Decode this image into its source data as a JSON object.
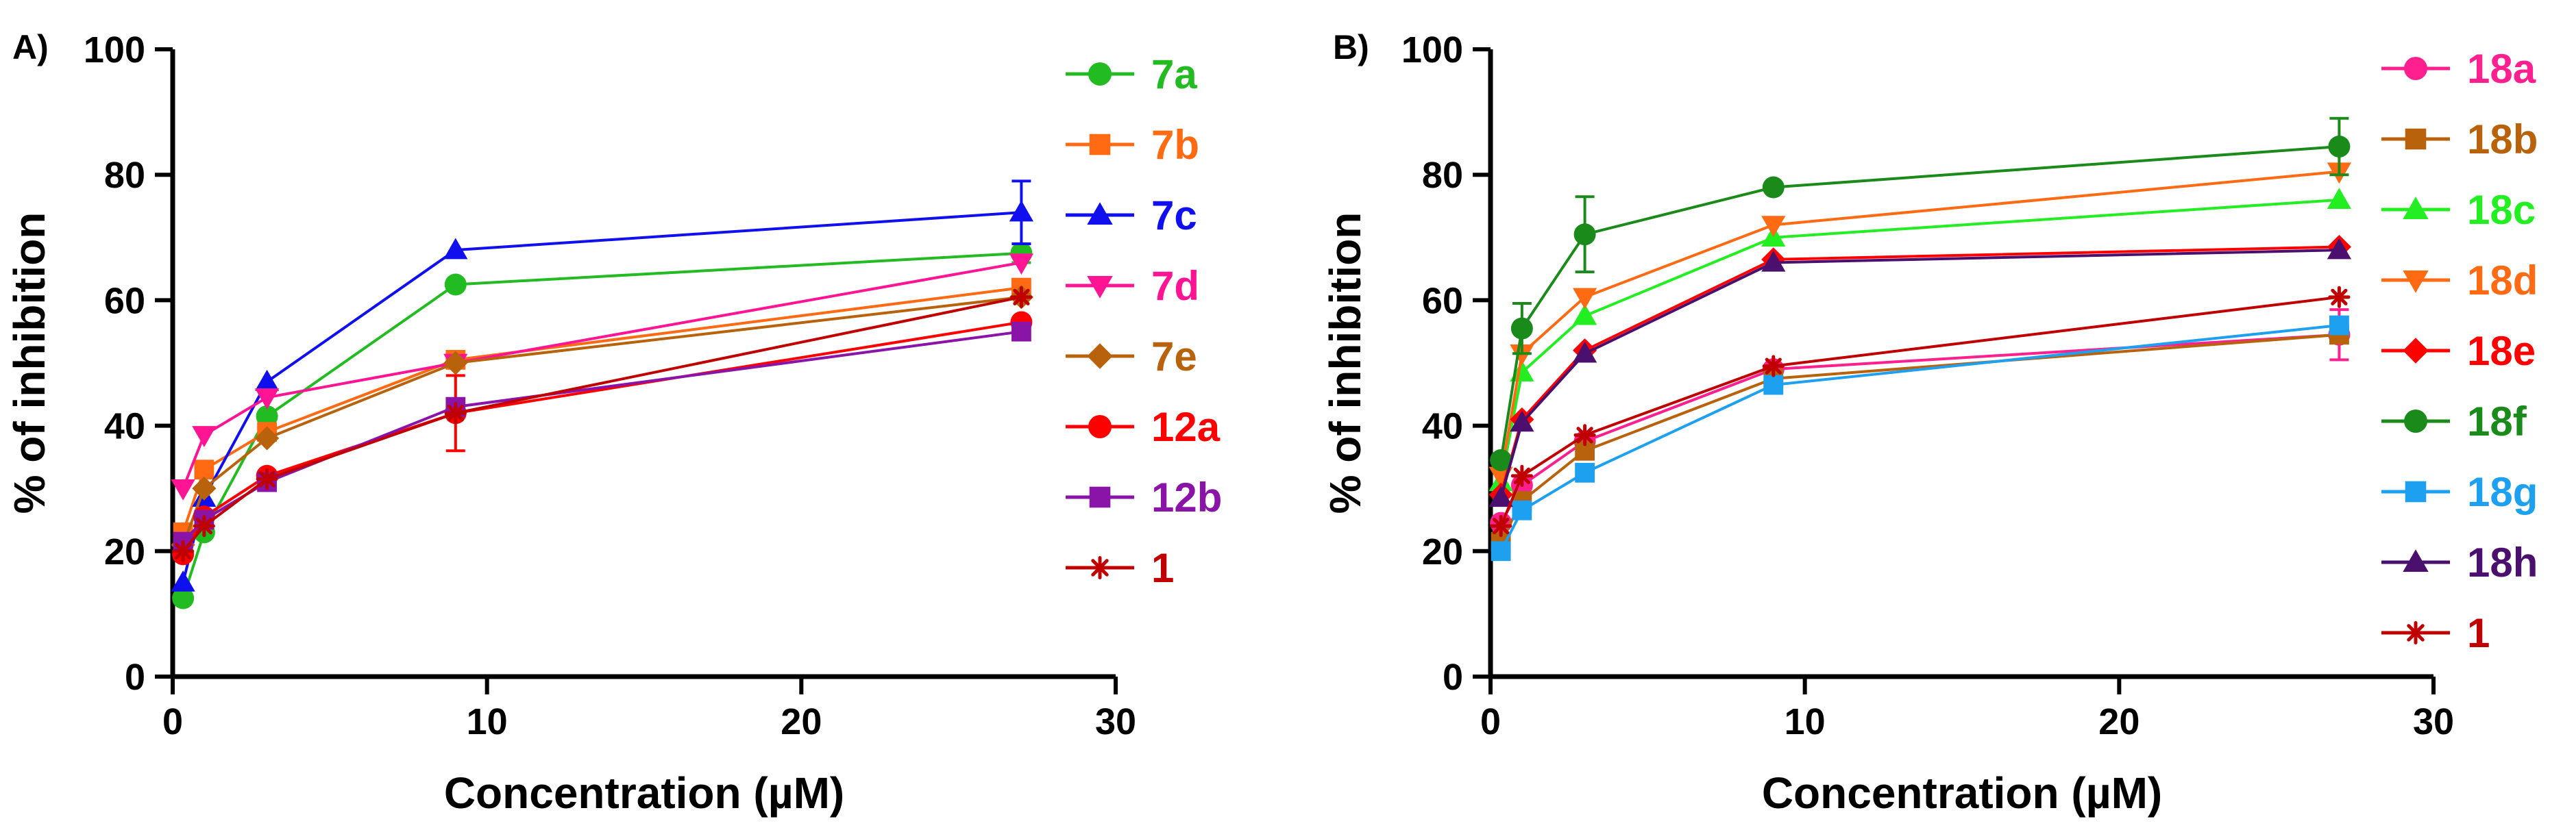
{
  "chart_data": [
    {
      "type": "line",
      "panel_label": "A)",
      "xlabel": "Concentration (µM)",
      "ylabel": "% of inhibition",
      "xlim": [
        0,
        30
      ],
      "ylim": [
        0,
        100
      ],
      "xticks": [
        0,
        10,
        20,
        30
      ],
      "yticks": [
        0,
        20,
        40,
        60,
        80,
        100
      ],
      "x": [
        0.33,
        1,
        3,
        9,
        27
      ],
      "legend_position": "right",
      "series": [
        {
          "name": "7a",
          "color": "#22bb22",
          "marker": "circle",
          "values": [
            12.5,
            23,
            41.5,
            62.5,
            67.5
          ],
          "errors": [
            0,
            0,
            0,
            0,
            1.5
          ]
        },
        {
          "name": "7b",
          "color": "#ff6a13",
          "marker": "square",
          "values": [
            23,
            33,
            39,
            50.5,
            62
          ],
          "errors": [
            0,
            0,
            0,
            0,
            0
          ]
        },
        {
          "name": "7c",
          "color": "#1010ee",
          "marker": "triangle-up",
          "values": [
            15,
            28.5,
            47,
            68,
            74
          ],
          "errors": [
            0,
            0,
            0,
            0,
            5
          ]
        },
        {
          "name": "7d",
          "color": "#ff1493",
          "marker": "triangle-down",
          "values": [
            30,
            38.5,
            44.5,
            50,
            66
          ],
          "errors": [
            0,
            0,
            0,
            0,
            0
          ]
        },
        {
          "name": "7e",
          "color": "#b8620b",
          "marker": "diamond",
          "values": [
            21,
            30,
            38,
            50,
            60.5
          ],
          "errors": [
            0,
            0,
            0,
            0,
            0
          ]
        },
        {
          "name": "12a",
          "color": "#ff0000",
          "marker": "circle",
          "values": [
            19.5,
            25.5,
            32,
            42,
            56.5
          ],
          "errors": [
            0,
            0,
            0,
            6,
            0
          ]
        },
        {
          "name": "12b",
          "color": "#8b14a8",
          "marker": "square",
          "values": [
            21.5,
            25,
            31,
            43,
            55
          ],
          "errors": [
            0,
            0,
            0,
            0,
            0
          ]
        },
        {
          "name": "1",
          "color": "#c00000",
          "marker": "star",
          "values": [
            20,
            24,
            31.5,
            42,
            60.5
          ],
          "errors": [
            0,
            0,
            0,
            0,
            0
          ]
        }
      ]
    },
    {
      "type": "line",
      "panel_label": "B)",
      "xlabel": "Concentration (µM)",
      "ylabel": "% of inhibition",
      "xlim": [
        0,
        30
      ],
      "ylim": [
        0,
        100
      ],
      "xticks": [
        0,
        10,
        20,
        30
      ],
      "yticks": [
        0,
        20,
        40,
        60,
        80,
        100
      ],
      "x": [
        0.33,
        1,
        3,
        9,
        27
      ],
      "legend_position": "right",
      "series": [
        {
          "name": "18a",
          "color": "#ff1f8e",
          "marker": "circle",
          "values": [
            24.5,
            30.5,
            37.5,
            49,
            54.5
          ],
          "errors": [
            0,
            0,
            0,
            0,
            4
          ]
        },
        {
          "name": "18b",
          "color": "#b8620b",
          "marker": "square",
          "values": [
            21.5,
            28,
            36,
            47.5,
            54.5
          ],
          "errors": [
            0,
            0,
            0,
            0,
            0
          ]
        },
        {
          "name": "18c",
          "color": "#22ee22",
          "marker": "triangle-up",
          "values": [
            31,
            48.5,
            57.5,
            70,
            76
          ],
          "errors": [
            0,
            0,
            0,
            0,
            0
          ]
        },
        {
          "name": "18d",
          "color": "#ff6a13",
          "marker": "triangle-down",
          "values": [
            32,
            51.5,
            60.5,
            72,
            80.5
          ],
          "errors": [
            0,
            0,
            0,
            0,
            0
          ]
        },
        {
          "name": "18e",
          "color": "#ff0000",
          "marker": "diamond",
          "values": [
            29,
            41,
            52,
            66.5,
            68.5
          ],
          "errors": [
            0,
            0,
            0,
            0,
            0
          ]
        },
        {
          "name": "18f",
          "color": "#1a8a1a",
          "marker": "circle",
          "values": [
            34.5,
            55.5,
            70.5,
            78,
            84.5
          ],
          "errors": [
            0,
            4,
            6,
            0,
            4.5
          ]
        },
        {
          "name": "18g",
          "color": "#1ea0f0",
          "marker": "square",
          "values": [
            20,
            26.5,
            32.5,
            46.5,
            56
          ],
          "errors": [
            0,
            0,
            0,
            0,
            0
          ]
        },
        {
          "name": "18h",
          "color": "#4b0f6e",
          "marker": "triangle-up",
          "values": [
            28.5,
            40.5,
            51.5,
            66,
            68
          ],
          "errors": [
            0,
            0,
            0,
            0,
            0
          ]
        },
        {
          "name": "1",
          "color": "#c00000",
          "marker": "star",
          "values": [
            24,
            32,
            38.5,
            49.5,
            60.5
          ],
          "errors": [
            0,
            0,
            0,
            0,
            0
          ]
        }
      ]
    }
  ]
}
